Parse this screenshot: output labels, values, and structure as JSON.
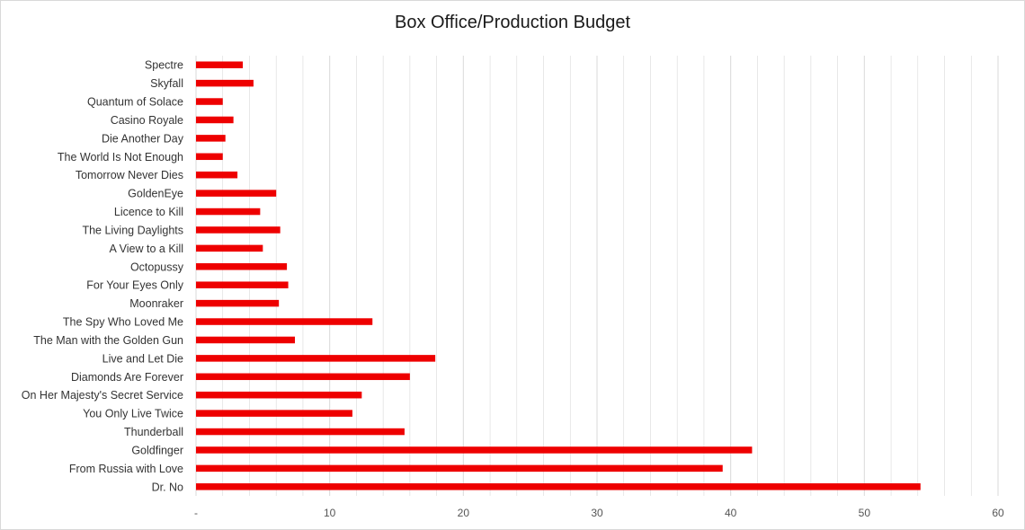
{
  "chart_data": {
    "type": "bar",
    "orientation": "horizontal",
    "title": "Box Office/Production Budget",
    "xlabel": "",
    "ylabel": "",
    "categories": [
      "Spectre",
      "Skyfall",
      "Quantum of Solace",
      "Casino Royale",
      "Die Another Day",
      "The World Is Not Enough",
      "Tomorrow Never Dies",
      "GoldenEye",
      "Licence to Kill",
      "The Living Daylights",
      "A View to a Kill",
      "Octopussy",
      "For Your Eyes Only",
      "Moonraker",
      "The Spy Who Loved Me",
      "The Man with the Golden Gun",
      "Live and Let Die",
      "Diamonds Are Forever",
      "On Her Majesty's Secret Service",
      "You Only Live Twice",
      "Thunderball",
      "Goldfinger",
      "From Russia with Love",
      "Dr. No"
    ],
    "values": [
      3.5,
      4.3,
      2.0,
      2.8,
      2.2,
      2.0,
      3.1,
      6.0,
      4.8,
      6.3,
      5.0,
      6.8,
      6.9,
      6.2,
      13.2,
      7.4,
      17.9,
      16.0,
      12.4,
      11.7,
      15.6,
      41.6,
      39.4,
      54.2
    ],
    "xlim": [
      0,
      60
    ],
    "xticks": [
      0,
      10,
      20,
      30,
      40,
      50,
      60
    ],
    "xtick_labels": [
      "-",
      "10",
      "20",
      "30",
      "40",
      "50",
      "60"
    ],
    "grid": true,
    "legend": "none",
    "bar_color": "#ee0000",
    "grid_color": "#d9d9d9"
  }
}
